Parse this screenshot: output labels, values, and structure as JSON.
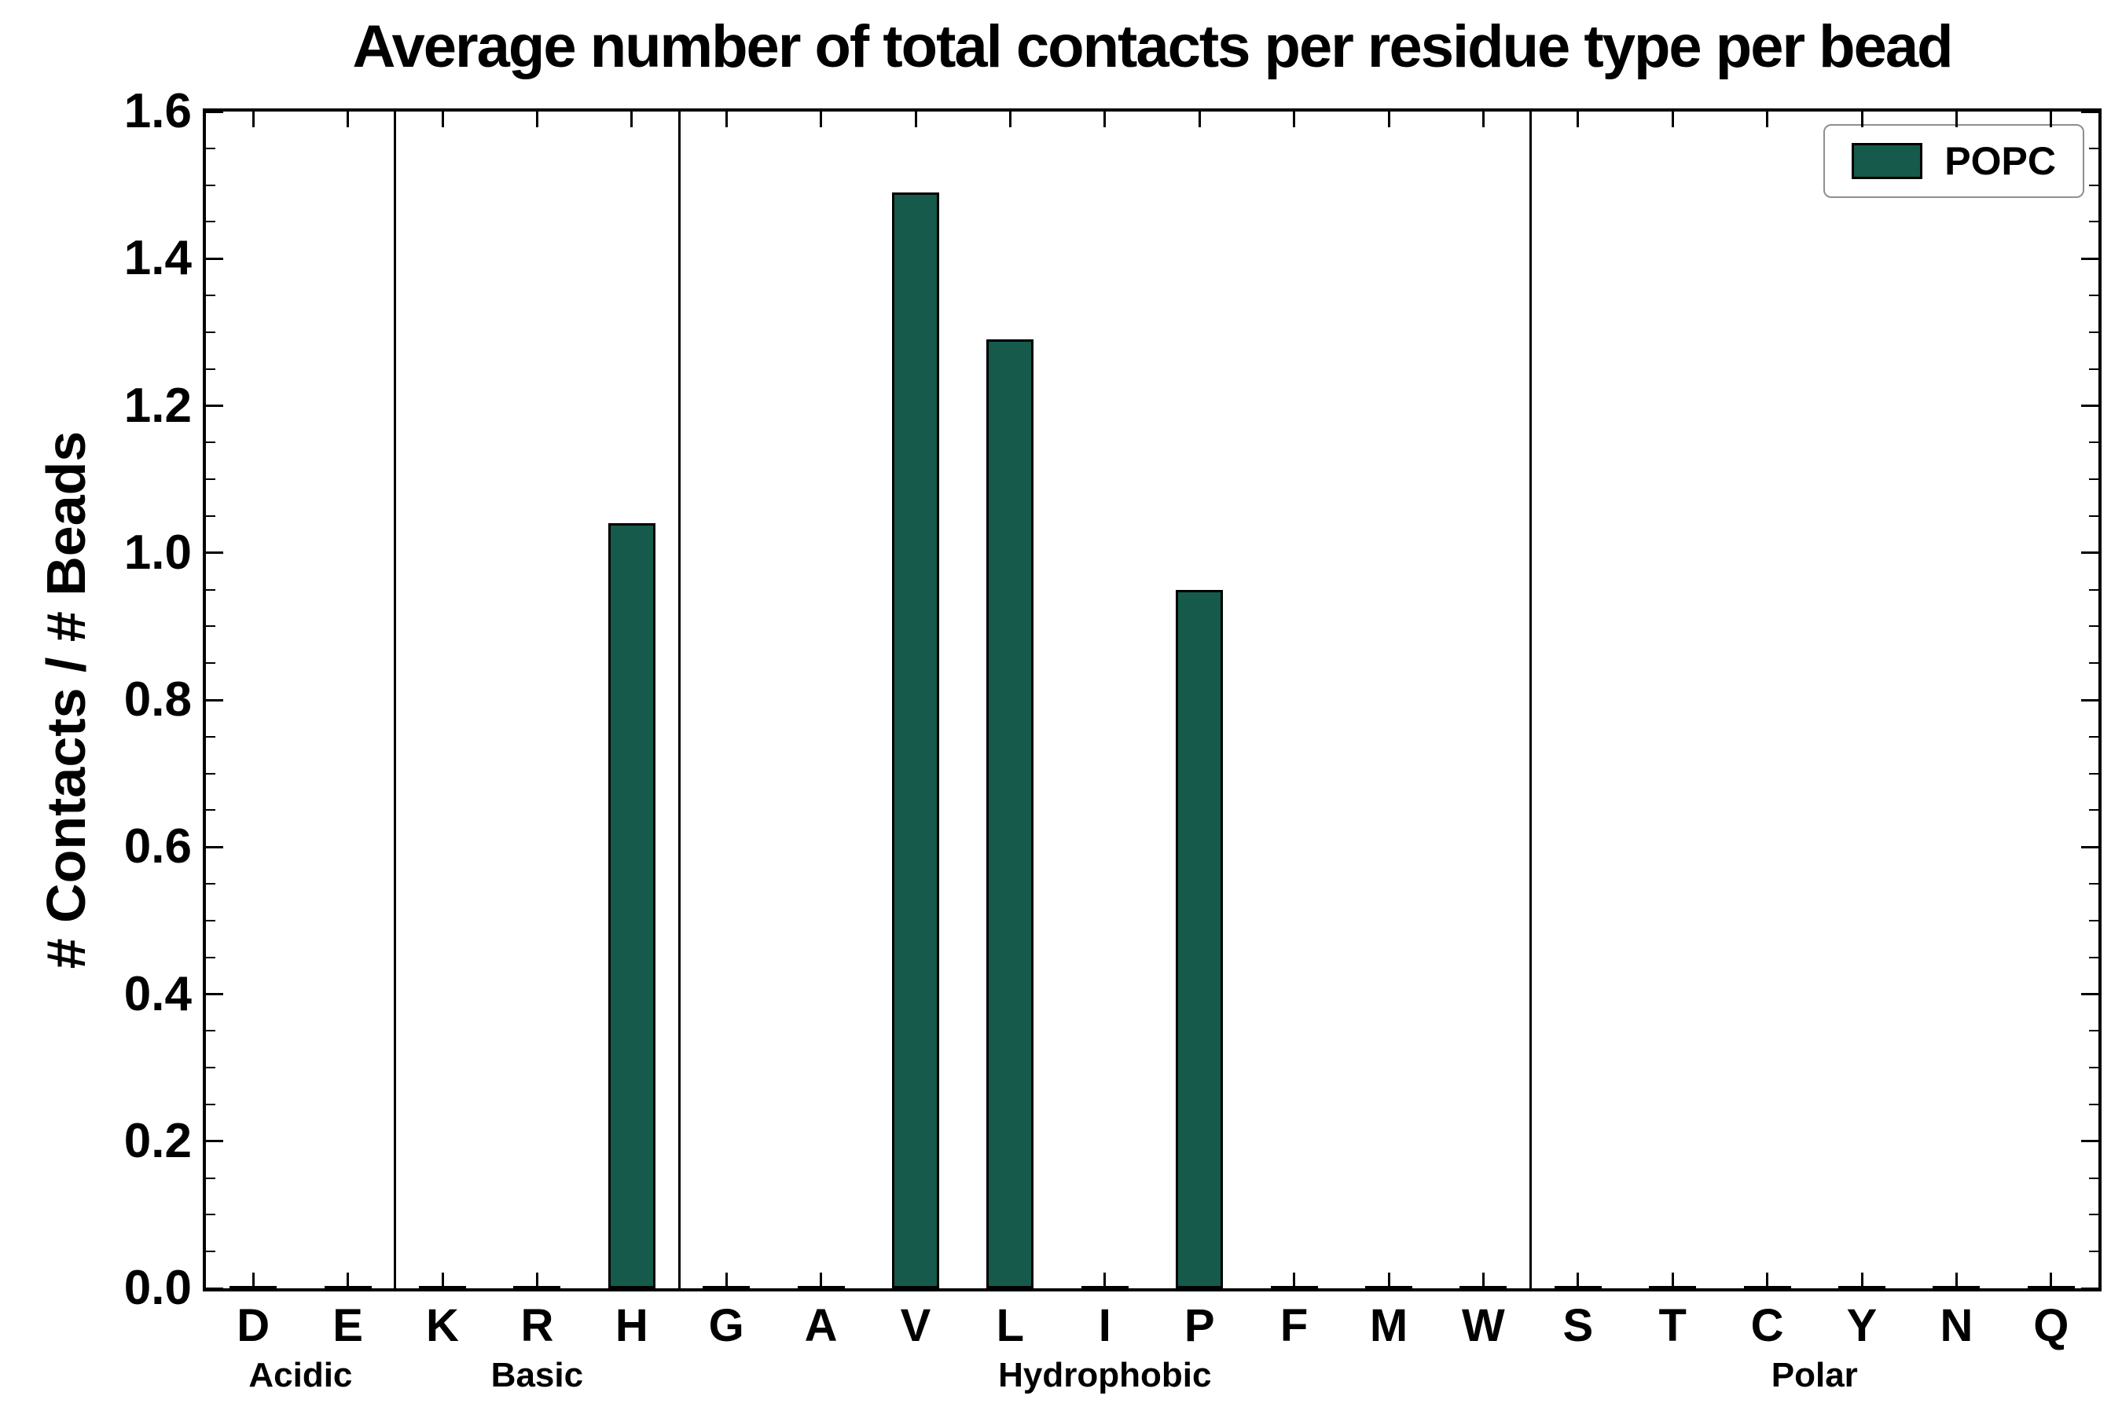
{
  "page": {
    "background": "#ffffff"
  },
  "chart_data": {
    "type": "bar",
    "title": "Average number of total contacts per residue type per bead",
    "ylabel": "# Contacts / # Beads",
    "xlabel": "",
    "ylim": [
      0.0,
      1.6
    ],
    "ytick_step": 0.2,
    "ytick_labels": [
      "0.0",
      "0.2",
      "0.4",
      "0.6",
      "0.8",
      "1.0",
      "1.2",
      "1.4",
      "1.6"
    ],
    "grid": false,
    "legend_position": "upper right",
    "bar_color": "#155a4b",
    "bar_edge_color": "#000000",
    "legend": [
      {
        "name": "POPC",
        "color": "#155a4b"
      }
    ],
    "groups": [
      {
        "label": "Acidic",
        "categories": [
          "D",
          "E"
        ],
        "values": [
          0.0,
          0.0
        ]
      },
      {
        "label": "Basic",
        "categories": [
          "K",
          "R",
          "H"
        ],
        "values": [
          0.0,
          0.0,
          1.04
        ]
      },
      {
        "label": "Hydrophobic",
        "categories": [
          "G",
          "A",
          "V",
          "L",
          "I",
          "P",
          "F",
          "M",
          "W"
        ],
        "values": [
          0.0,
          0.0,
          1.49,
          1.29,
          0.0,
          0.95,
          0.0,
          0.0,
          0.0
        ]
      },
      {
        "label": "Polar",
        "categories": [
          "S",
          "T",
          "C",
          "Y",
          "N",
          "Q"
        ],
        "values": [
          0.0,
          0.0,
          0.0,
          0.0,
          0.0,
          0.0
        ]
      }
    ]
  }
}
